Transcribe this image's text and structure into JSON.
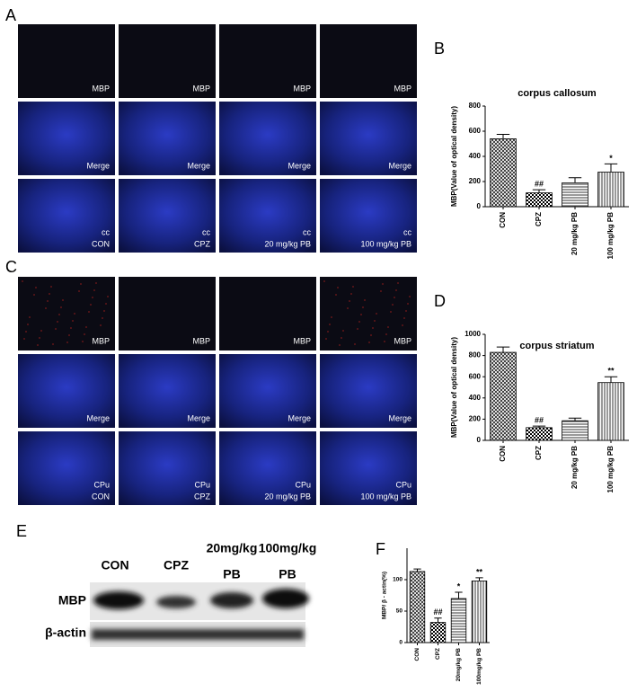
{
  "image_panels": [
    {
      "label": "A",
      "rows": [
        [
          "MBP",
          "MBP",
          "MBP",
          "MBP"
        ],
        [
          "Merge",
          "Merge",
          "Merge",
          "Merge"
        ],
        [
          {
            "region": "cc",
            "group": "CON"
          },
          {
            "region": "cc",
            "group": "CPZ"
          },
          {
            "region": "cc",
            "group": "20 mg/kg PB"
          },
          {
            "region": "cc",
            "group": "100 mg/kg PB"
          }
        ]
      ]
    },
    {
      "label": "C",
      "rows": [
        [
          "MBP",
          "MBP",
          "MBP",
          "MBP"
        ],
        [
          "Merge",
          "Merge",
          "Merge",
          "Merge"
        ],
        [
          {
            "region": "CPu",
            "group": "CON"
          },
          {
            "region": "CPu",
            "group": "CPZ"
          },
          {
            "region": "CPu",
            "group": "20 mg/kg PB"
          },
          {
            "region": "CPu",
            "group": "100 mg/kg PB"
          }
        ]
      ]
    }
  ],
  "blot": {
    "label": "E",
    "columns": [
      [
        "CON"
      ],
      [
        "CPZ"
      ],
      [
        "20mg/kg",
        "PB"
      ],
      [
        "100mg/kg",
        "PB"
      ]
    ],
    "rows": [
      "MBP",
      "β-actin"
    ]
  },
  "chart_data": [
    {
      "panel": "B",
      "type": "bar",
      "title": "corpus callosum",
      "y_label": "MBP(Value of optical density)",
      "categories": [
        "CON",
        "CPZ",
        "20 mg/kg PB",
        "100 mg/kg PB"
      ],
      "values": [
        540,
        110,
        190,
        275
      ],
      "errors": [
        35,
        25,
        40,
        65
      ],
      "significance": [
        null,
        "##",
        null,
        "*"
      ],
      "patterns": [
        "crosshatch",
        "checker",
        "horizontal",
        "vertical"
      ],
      "ylim": [
        0,
        800
      ],
      "yticks": [
        0,
        200,
        400,
        600,
        800
      ]
    },
    {
      "panel": "D",
      "type": "bar",
      "title": "corpus striatum",
      "y_label": "MBP(Value of optical density)",
      "categories": [
        "CON",
        "CPZ",
        "20 mg/kg PB",
        "100 mg/kg PB"
      ],
      "values": [
        830,
        120,
        185,
        545
      ],
      "errors": [
        50,
        15,
        25,
        55
      ],
      "significance": [
        null,
        "##",
        null,
        "**"
      ],
      "patterns": [
        "crosshatch",
        "checker",
        "horizontal",
        "vertical"
      ],
      "ylim": [
        0,
        1000
      ],
      "yticks": [
        0,
        200,
        400,
        600,
        800,
        1000
      ]
    },
    {
      "panel": "F",
      "type": "bar",
      "y_label": "MBP/ β - actin(%)",
      "categories": [
        "CON",
        "CPZ",
        "20mg/kg PB",
        "100mg/kg PB"
      ],
      "values": [
        113,
        32,
        70,
        98
      ],
      "errors": [
        4,
        7,
        10,
        5
      ],
      "significance": [
        null,
        "##",
        "*",
        "**"
      ],
      "patterns": [
        "crosshatch",
        "checker",
        "horizontal",
        "vertical"
      ],
      "ylim": [
        0,
        150
      ],
      "yticks": [
        0,
        50,
        100
      ]
    }
  ]
}
